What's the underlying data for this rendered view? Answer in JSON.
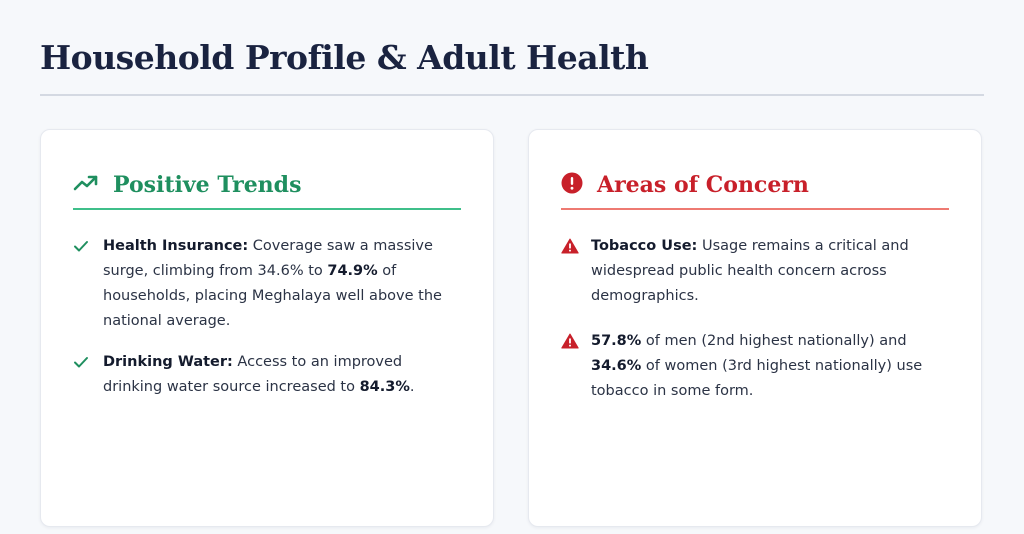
{
  "page": {
    "title": "Household Profile & Adult Health"
  },
  "cards": {
    "positive": {
      "title": "Positive Trends",
      "icon": "trending-up-icon",
      "accent": "#1f8f5f",
      "items": [
        {
          "icon": "check-icon",
          "label": "Health Insurance:",
          "text_a": " Coverage saw a massive surge, climbing from 34.6% to ",
          "highlight": "74.9%",
          "text_b": " of households, placing Meghalaya well above the national average."
        },
        {
          "icon": "check-icon",
          "label": "Drinking Water:",
          "text_a": " Access to an improved drinking water source increased to ",
          "highlight": "84.3%",
          "text_b": "."
        }
      ]
    },
    "concern": {
      "title": "Areas of Concern",
      "icon": "alert-circle-icon",
      "accent": "#c8202a",
      "items": [
        {
          "icon": "warning-triangle-icon",
          "label": "Tobacco Use:",
          "text_a": " Usage remains a critical and widespread public health concern across demographics."
        },
        {
          "icon": "warning-triangle-icon",
          "highlight_a": "57.8%",
          "text_a": " of men (2nd highest nationally) and ",
          "highlight_b": "34.6%",
          "text_b": " of women (3rd highest nationally) use tobacco in some form."
        }
      ]
    }
  }
}
